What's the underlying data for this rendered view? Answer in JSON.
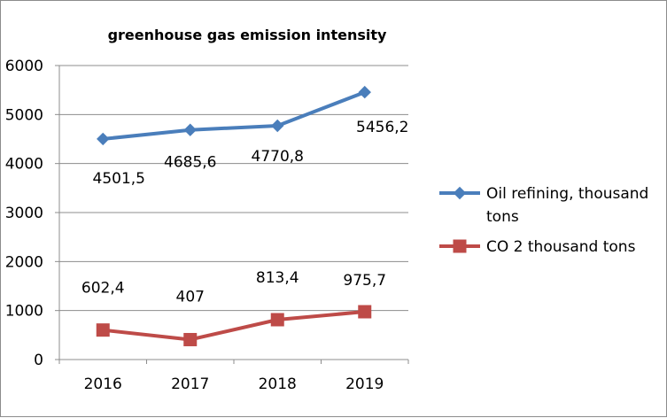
{
  "chart_data": {
    "type": "line",
    "title": "greenhouse gas emission intensity",
    "xlabel": "",
    "ylabel": "",
    "categories": [
      "2016",
      "2017",
      "2018",
      "2019"
    ],
    "ylim": [
      0,
      6000
    ],
    "yticks": [
      0,
      1000,
      2000,
      3000,
      4000,
      5000,
      6000
    ],
    "grid": true,
    "legend_position": "right",
    "series": [
      {
        "name": "Oil refining, thousand tons",
        "name_lines": [
          "Oil refining, thousand",
          "tons"
        ],
        "values": [
          4501.5,
          4685.6,
          4770.8,
          5456.2
        ],
        "labels": [
          "4501,5",
          "4685,6",
          "4770,8",
          "5456,2"
        ],
        "color": "#4a7ebb",
        "marker": "diamond"
      },
      {
        "name": "CO 2 thousand tons",
        "name_lines": [
          "CO 2 thousand tons"
        ],
        "values": [
          602.4,
          407,
          813.4,
          975.7
        ],
        "labels": [
          "602,4",
          "407",
          "813,4",
          "975,7"
        ],
        "color": "#be4b48",
        "marker": "square"
      }
    ]
  }
}
